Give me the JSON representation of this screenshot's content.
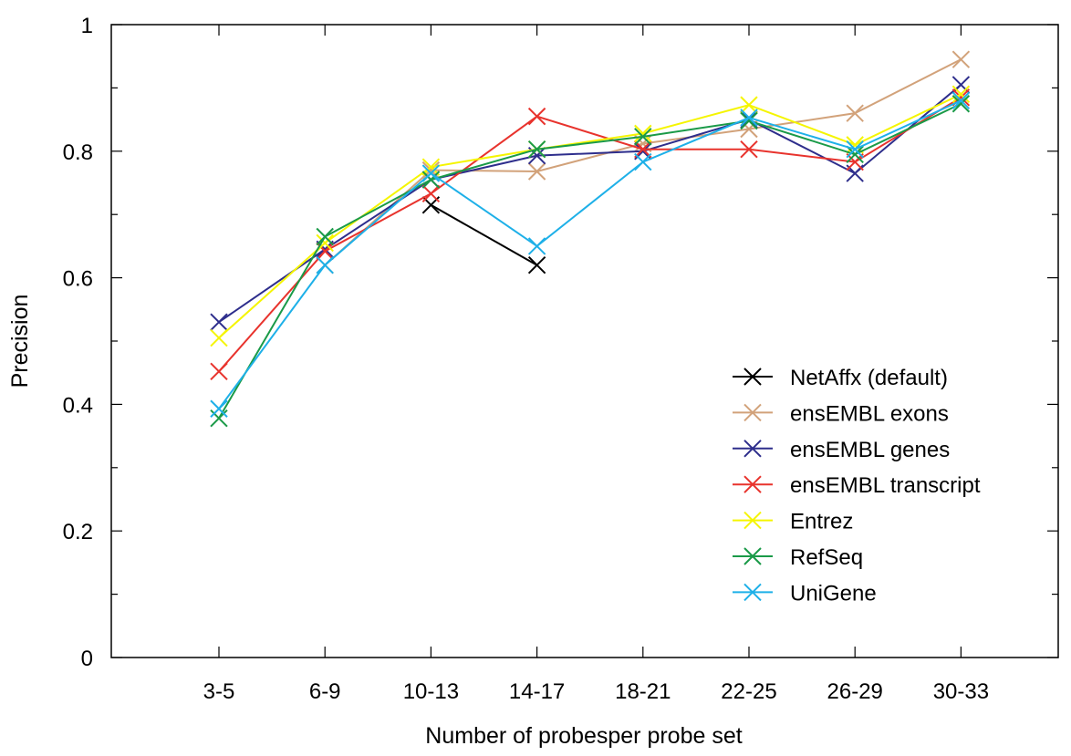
{
  "chart_data": {
    "type": "line",
    "title": "",
    "xlabel": "Number of probesper probe set",
    "ylabel": "Precision",
    "categories": [
      "3-5",
      "6-9",
      "10-13",
      "14-17",
      "18-21",
      "22-25",
      "26-29",
      "30-33"
    ],
    "ylim": [
      0,
      1
    ],
    "yticks": [
      "0",
      "0.2",
      "0.4",
      "0.6",
      "0.8",
      "1"
    ],
    "grid": false,
    "legend_position": "bottom-right",
    "marker": "x-cross",
    "series": [
      {
        "name": "NetAffx  (default)",
        "color": "#000000",
        "values": [
          null,
          null,
          0.715,
          0.62,
          null,
          null,
          null,
          null
        ]
      },
      {
        "name": "ensEMBL exons",
        "color": "#d2a27a",
        "values": [
          null,
          0.62,
          0.77,
          0.768,
          0.812,
          0.835,
          0.86,
          0.945
        ]
      },
      {
        "name": "ensEMBL genes",
        "color": "#2e2e8c",
        "values": [
          0.53,
          0.645,
          0.755,
          0.793,
          0.8,
          0.85,
          0.765,
          0.905
        ]
      },
      {
        "name": "ensEMBL transcript",
        "color": "#e8332d",
        "values": [
          0.452,
          0.642,
          0.733,
          0.855,
          0.803,
          0.803,
          0.783,
          0.885
        ]
      },
      {
        "name": "Entrez",
        "color": "#f5f500",
        "values": [
          0.505,
          0.655,
          0.775,
          0.803,
          0.828,
          0.873,
          0.81,
          0.89
        ]
      },
      {
        "name": "RefSeq",
        "color": "#1a9a48",
        "values": [
          0.378,
          0.665,
          0.755,
          0.803,
          0.823,
          0.848,
          0.795,
          0.875
        ]
      },
      {
        "name": "UniGene",
        "color": "#1eb0e8",
        "values": [
          0.393,
          0.62,
          0.765,
          0.65,
          0.783,
          0.853,
          0.803,
          0.88
        ]
      }
    ]
  }
}
